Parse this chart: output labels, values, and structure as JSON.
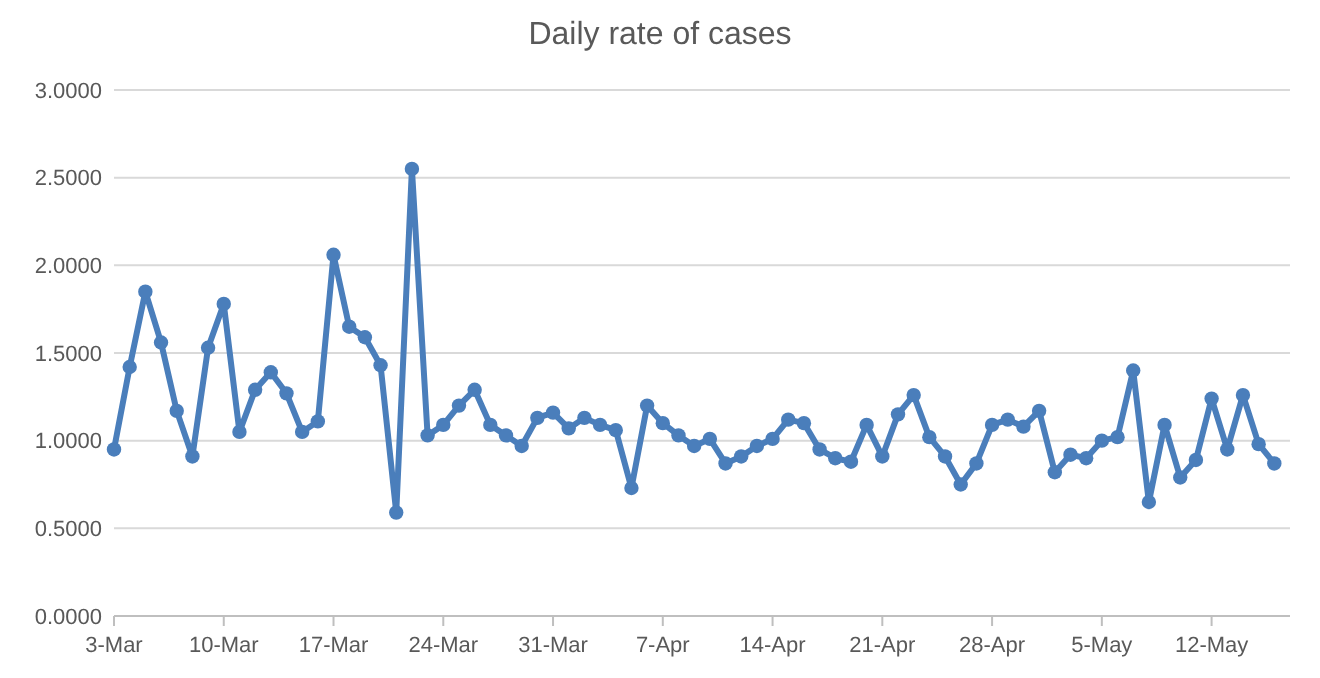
{
  "chart_data": {
    "type": "line",
    "title": "Daily rate of cases",
    "x": [
      "--03-03",
      "--03-04",
      "--03-05",
      "--03-06",
      "--03-07",
      "--03-08",
      "--03-09",
      "--03-10",
      "--03-11",
      "--03-12",
      "--03-13",
      "--03-14",
      "--03-15",
      "--03-16",
      "--03-17",
      "--03-18",
      "--03-19",
      "--03-20",
      "--03-21",
      "--03-22",
      "--03-23",
      "--03-24",
      "--03-25",
      "--03-26",
      "--03-27",
      "--03-28",
      "--03-29",
      "--03-30",
      "--03-31",
      "--04-01",
      "--04-02",
      "--04-03",
      "--04-04",
      "--04-05",
      "--04-06",
      "--04-07",
      "--04-08",
      "--04-09",
      "--04-10",
      "--04-11",
      "--04-12",
      "--04-13",
      "--04-14",
      "--04-15",
      "--04-16",
      "--04-17",
      "--04-18",
      "--04-19",
      "--04-20",
      "--04-21",
      "--04-22",
      "--04-23",
      "--04-24",
      "--04-25",
      "--04-26",
      "--04-27",
      "--04-28",
      "--04-29",
      "--04-30",
      "--05-01",
      "--05-02",
      "--05-03",
      "--05-04",
      "--05-05",
      "--05-06",
      "--05-07",
      "--05-08",
      "--05-09",
      "--05-10",
      "--05-11",
      "--05-12",
      "--05-13",
      "--05-14",
      "--05-15",
      "--05-16"
    ],
    "series": [
      {
        "color": "#4a7ebb",
        "values": [
          0.95,
          1.42,
          1.85,
          1.56,
          1.17,
          0.91,
          1.53,
          1.78,
          1.05,
          1.29,
          1.39,
          1.27,
          1.05,
          1.11,
          2.06,
          1.65,
          1.59,
          1.43,
          0.59,
          2.55,
          1.03,
          1.09,
          1.2,
          1.29,
          1.09,
          1.03,
          0.97,
          1.13,
          1.16,
          1.07,
          1.13,
          1.09,
          1.06,
          0.73,
          1.2,
          1.1,
          1.03,
          0.97,
          1.01,
          0.87,
          0.91,
          0.97,
          1.01,
          1.12,
          1.1,
          0.95,
          0.9,
          0.88,
          1.09,
          0.91,
          1.15,
          1.26,
          1.02,
          0.91,
          0.75,
          0.87,
          1.09,
          1.12,
          1.08,
          1.17,
          0.82,
          0.92,
          0.9,
          1.0,
          1.02,
          1.4,
          0.65,
          1.09,
          0.79,
          0.89,
          1.24,
          0.95,
          1.26,
          0.98,
          0.87
        ]
      }
    ],
    "xlim": [
      "--03-03",
      "--05-17"
    ],
    "xticks": [
      {
        "value": "--03-03",
        "label": "3-Mar"
      },
      {
        "value": "--03-10",
        "label": "10-Mar"
      },
      {
        "value": "--03-17",
        "label": "17-Mar"
      },
      {
        "value": "--03-24",
        "label": "24-Mar"
      },
      {
        "value": "--03-31",
        "label": "31-Mar"
      },
      {
        "value": "--04-07",
        "label": "7-Apr"
      },
      {
        "value": "--04-14",
        "label": "14-Apr"
      },
      {
        "value": "--04-21",
        "label": "21-Apr"
      },
      {
        "value": "--04-28",
        "label": "28-Apr"
      },
      {
        "value": "--05-05",
        "label": "5-May"
      },
      {
        "value": "--05-12",
        "label": "12-May"
      }
    ],
    "ylim": [
      0,
      3
    ],
    "yticks": [
      {
        "value": 0,
        "label": "0.0000"
      },
      {
        "value": 0.5,
        "label": "0.5000"
      },
      {
        "value": 1,
        "label": "1.0000"
      },
      {
        "value": 1.5,
        "label": "1.5000"
      },
      {
        "value": 2,
        "label": "2.0000"
      },
      {
        "value": 2.5,
        "label": "2.5000"
      },
      {
        "value": 3,
        "label": "3.0000"
      }
    ],
    "grid": "y",
    "marker": "circle",
    "line_style": "solid"
  }
}
